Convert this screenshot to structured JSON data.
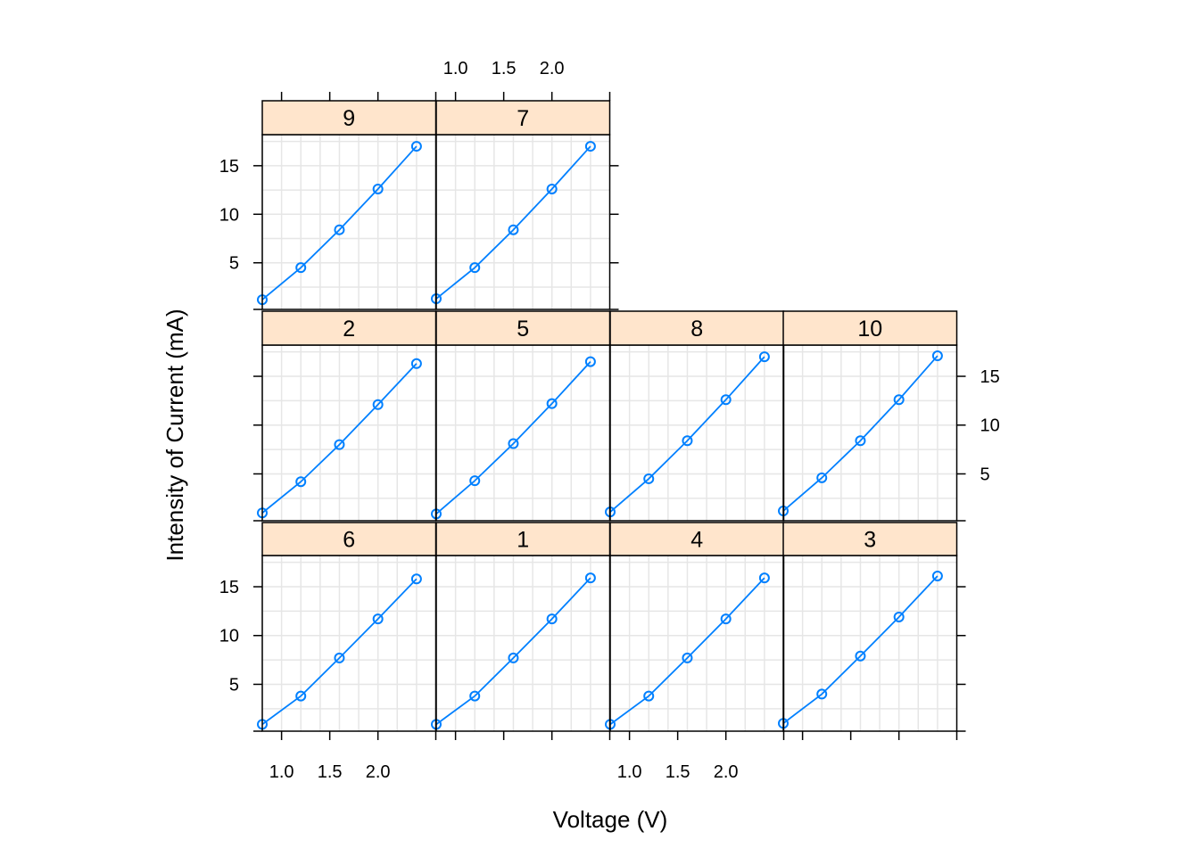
{
  "chart_data": {
    "type": "line",
    "layout": "trellis-panels",
    "xlabel": "Voltage (V)",
    "ylabel": "Intensity of Current (mA)",
    "x_ticks": [
      1.0,
      1.5,
      2.0
    ],
    "x_tick_labels": [
      "1.0",
      "1.5",
      "2.0"
    ],
    "y_ticks": [
      5,
      10,
      15
    ],
    "y_tick_labels": [
      "5",
      "10",
      "15"
    ],
    "xlim": [
      0.8,
      2.6
    ],
    "ylim": [
      0.2,
      18.2
    ],
    "grid": true,
    "line_color": "#0080ff",
    "strip_color": "#ffe5cc",
    "x": [
      0.8,
      1.2,
      1.6,
      2.0,
      2.4
    ],
    "panels": [
      {
        "label": "9",
        "values": [
          1.2,
          4.5,
          8.4,
          12.6,
          17.0
        ]
      },
      {
        "label": "7",
        "values": [
          1.3,
          4.5,
          8.4,
          12.6,
          17.0
        ]
      },
      {
        "label": "2",
        "values": [
          1.0,
          4.2,
          8.0,
          12.1,
          16.3
        ]
      },
      {
        "label": "5",
        "values": [
          0.9,
          4.3,
          8.1,
          12.2,
          16.5
        ]
      },
      {
        "label": "8",
        "values": [
          1.1,
          4.5,
          8.4,
          12.6,
          17.0
        ]
      },
      {
        "label": "10",
        "values": [
          1.2,
          4.6,
          8.4,
          12.6,
          17.1
        ]
      },
      {
        "label": "6",
        "values": [
          0.9,
          3.8,
          7.7,
          11.7,
          15.8
        ]
      },
      {
        "label": "1",
        "values": [
          0.9,
          3.8,
          7.7,
          11.7,
          15.9
        ]
      },
      {
        "label": "4",
        "values": [
          0.9,
          3.8,
          7.7,
          11.7,
          15.9
        ]
      },
      {
        "label": "3",
        "values": [
          1.0,
          4.0,
          7.9,
          11.9,
          16.1
        ]
      }
    ]
  }
}
